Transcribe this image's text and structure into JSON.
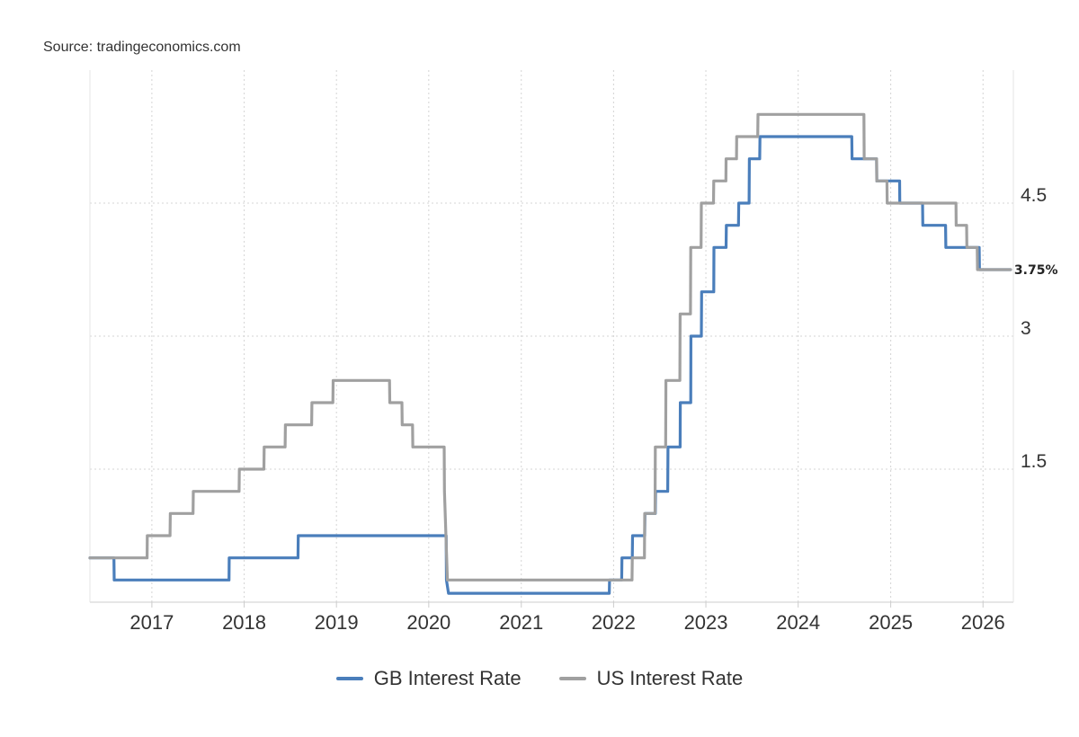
{
  "source": "Source: tradingeconomics.com",
  "chart_data": {
    "type": "line",
    "x_axis": {
      "type": "date",
      "range": [
        "2016-05-01",
        "2026-05-01"
      ],
      "ticks": [
        "2017",
        "2018",
        "2019",
        "2020",
        "2021",
        "2022",
        "2023",
        "2024",
        "2025",
        "2026"
      ]
    },
    "y_axis": {
      "position": "right",
      "range": [
        0,
        6
      ],
      "ticks": [
        "1.5",
        "3",
        "4.5"
      ]
    },
    "grid": true,
    "legend": "bottom-center",
    "last_value_label": "3.75%",
    "series": [
      {
        "name": "GB Interest Rate",
        "color": "#4a7ebb",
        "points": [
          [
            "2016-05-01",
            0.5
          ],
          [
            "2016-08-04",
            0.5
          ],
          [
            "2016-08-05",
            0.25
          ],
          [
            "2017-11-02",
            0.25
          ],
          [
            "2017-11-03",
            0.5
          ],
          [
            "2018-08-02",
            0.5
          ],
          [
            "2018-08-03",
            0.75
          ],
          [
            "2020-03-10",
            0.75
          ],
          [
            "2020-03-11",
            0.25
          ],
          [
            "2020-03-19",
            0.1
          ],
          [
            "2021-12-15",
            0.1
          ],
          [
            "2021-12-16",
            0.25
          ],
          [
            "2022-02-02",
            0.25
          ],
          [
            "2022-02-03",
            0.5
          ],
          [
            "2022-03-16",
            0.5
          ],
          [
            "2022-03-17",
            0.75
          ],
          [
            "2022-05-04",
            0.75
          ],
          [
            "2022-05-05",
            1.0
          ],
          [
            "2022-06-15",
            1.0
          ],
          [
            "2022-06-16",
            1.25
          ],
          [
            "2022-08-03",
            1.25
          ],
          [
            "2022-08-04",
            1.75
          ],
          [
            "2022-09-21",
            1.75
          ],
          [
            "2022-09-22",
            2.25
          ],
          [
            "2022-11-02",
            2.25
          ],
          [
            "2022-11-03",
            3.0
          ],
          [
            "2022-12-14",
            3.0
          ],
          [
            "2022-12-15",
            3.5
          ],
          [
            "2023-02-01",
            3.5
          ],
          [
            "2023-02-02",
            4.0
          ],
          [
            "2023-03-22",
            4.0
          ],
          [
            "2023-03-23",
            4.25
          ],
          [
            "2023-05-10",
            4.25
          ],
          [
            "2023-05-11",
            4.5
          ],
          [
            "2023-06-21",
            4.5
          ],
          [
            "2023-06-22",
            5.0
          ],
          [
            "2023-08-02",
            5.0
          ],
          [
            "2023-08-03",
            5.25
          ],
          [
            "2024-07-31",
            5.25
          ],
          [
            "2024-08-01",
            5.0
          ],
          [
            "2024-11-06",
            5.0
          ],
          [
            "2024-11-07",
            4.75
          ],
          [
            "2025-02-05",
            4.75
          ],
          [
            "2025-02-06",
            4.5
          ],
          [
            "2025-05-07",
            4.5
          ],
          [
            "2025-05-08",
            4.25
          ],
          [
            "2025-08-06",
            4.25
          ],
          [
            "2025-08-07",
            4.0
          ],
          [
            "2025-12-17",
            4.0
          ],
          [
            "2025-12-18",
            3.75
          ],
          [
            "2026-04-20",
            3.75
          ]
        ]
      },
      {
        "name": "US Interest Rate",
        "color": "#a0a0a0",
        "points": [
          [
            "2016-05-01",
            0.5
          ],
          [
            "2016-12-13",
            0.5
          ],
          [
            "2016-12-14",
            0.75
          ],
          [
            "2017-03-14",
            0.75
          ],
          [
            "2017-03-15",
            1.0
          ],
          [
            "2017-06-13",
            1.0
          ],
          [
            "2017-06-14",
            1.25
          ],
          [
            "2017-12-12",
            1.25
          ],
          [
            "2017-12-13",
            1.5
          ],
          [
            "2018-03-20",
            1.5
          ],
          [
            "2018-03-21",
            1.75
          ],
          [
            "2018-06-12",
            1.75
          ],
          [
            "2018-06-13",
            2.0
          ],
          [
            "2018-09-25",
            2.0
          ],
          [
            "2018-09-26",
            2.25
          ],
          [
            "2018-12-18",
            2.25
          ],
          [
            "2018-12-19",
            2.5
          ],
          [
            "2019-07-30",
            2.5
          ],
          [
            "2019-07-31",
            2.25
          ],
          [
            "2019-09-17",
            2.25
          ],
          [
            "2019-09-18",
            2.0
          ],
          [
            "2019-10-29",
            2.0
          ],
          [
            "2019-10-30",
            1.75
          ],
          [
            "2020-03-02",
            1.75
          ],
          [
            "2020-03-03",
            1.25
          ],
          [
            "2020-03-15",
            0.25
          ],
          [
            "2022-03-15",
            0.25
          ],
          [
            "2022-03-16",
            0.5
          ],
          [
            "2022-05-03",
            0.5
          ],
          [
            "2022-05-04",
            1.0
          ],
          [
            "2022-06-14",
            1.0
          ],
          [
            "2022-06-15",
            1.75
          ],
          [
            "2022-07-26",
            1.75
          ],
          [
            "2022-07-27",
            2.5
          ],
          [
            "2022-09-20",
            2.5
          ],
          [
            "2022-09-21",
            3.25
          ],
          [
            "2022-11-01",
            3.25
          ],
          [
            "2022-11-02",
            4.0
          ],
          [
            "2022-12-13",
            4.0
          ],
          [
            "2022-12-14",
            4.5
          ],
          [
            "2023-01-31",
            4.5
          ],
          [
            "2023-02-01",
            4.75
          ],
          [
            "2023-03-21",
            4.75
          ],
          [
            "2023-03-22",
            5.0
          ],
          [
            "2023-05-02",
            5.0
          ],
          [
            "2023-05-03",
            5.25
          ],
          [
            "2023-07-25",
            5.25
          ],
          [
            "2023-07-26",
            5.5
          ],
          [
            "2024-09-17",
            5.5
          ],
          [
            "2024-09-18",
            5.0
          ],
          [
            "2024-11-06",
            5.0
          ],
          [
            "2024-11-07",
            4.75
          ],
          [
            "2024-12-17",
            4.75
          ],
          [
            "2024-12-18",
            4.5
          ],
          [
            "2025-09-16",
            4.5
          ],
          [
            "2025-09-17",
            4.25
          ],
          [
            "2025-10-28",
            4.25
          ],
          [
            "2025-10-29",
            4.0
          ],
          [
            "2025-12-09",
            4.0
          ],
          [
            "2025-12-10",
            3.75
          ],
          [
            "2026-04-20",
            3.75
          ]
        ]
      }
    ]
  }
}
